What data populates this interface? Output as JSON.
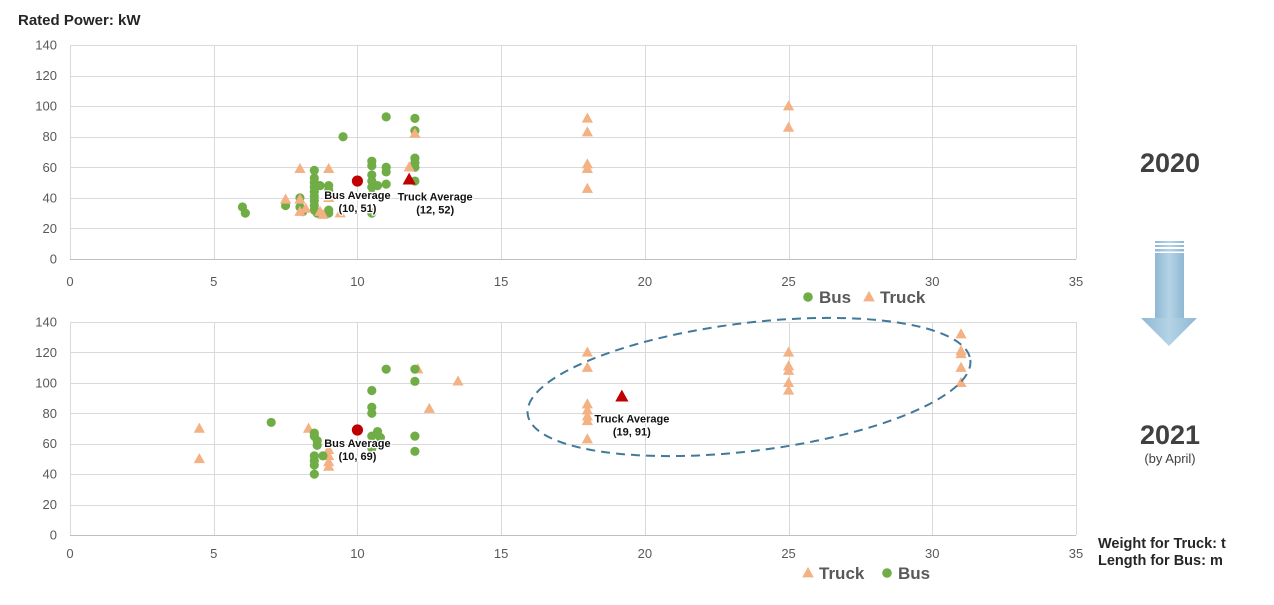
{
  "colors": {
    "bus": "#70ad47",
    "truck": "#f4b183",
    "average": "#c00000",
    "ellipse": "#41799a",
    "arrow": "#a3c7dd"
  },
  "arrow_icon": "down-arrow-icon",
  "chart_data": [
    {
      "type": "scatter",
      "period": "2020",
      "ylabel": "Rated Power: kW",
      "xlabel": [],
      "xlim": [
        0,
        35
      ],
      "ylim": [
        0,
        140
      ],
      "xticks": [
        0,
        5,
        10,
        15,
        20,
        25,
        30,
        35
      ],
      "yticks": [
        0,
        20,
        40,
        60,
        80,
        100,
        120,
        140
      ],
      "grid": true,
      "legend": "bottom",
      "series": [
        {
          "name": "Bus",
          "marker": "circle",
          "color": "#70ad47",
          "points": [
            [
              6.0,
              34
            ],
            [
              6.1,
              30
            ],
            [
              7.5,
              35
            ],
            [
              8.0,
              40
            ],
            [
              8.0,
              34
            ],
            [
              8.1,
              31
            ],
            [
              8.5,
              58
            ],
            [
              8.5,
              53
            ],
            [
              8.5,
              50
            ],
            [
              8.5,
              47
            ],
            [
              8.5,
              44
            ],
            [
              8.5,
              41
            ],
            [
              8.5,
              38
            ],
            [
              8.5,
              35
            ],
            [
              8.5,
              32
            ],
            [
              8.6,
              30
            ],
            [
              8.7,
              48
            ],
            [
              9.0,
              48
            ],
            [
              9.0,
              45
            ],
            [
              9.0,
              32
            ],
            [
              9.0,
              30
            ],
            [
              9.5,
              80
            ],
            [
              10.5,
              64
            ],
            [
              10.5,
              61
            ],
            [
              10.5,
              55
            ],
            [
              10.5,
              51
            ],
            [
              10.5,
              47
            ],
            [
              10.5,
              42
            ],
            [
              10.5,
              30
            ],
            [
              10.7,
              48
            ],
            [
              11.0,
              93
            ],
            [
              11.0,
              60
            ],
            [
              11.0,
              57
            ],
            [
              11.0,
              49
            ],
            [
              12.0,
              92
            ],
            [
              12.0,
              84
            ],
            [
              12.0,
              66
            ],
            [
              12.0,
              63
            ],
            [
              12.0,
              60
            ],
            [
              12.0,
              51
            ]
          ]
        },
        {
          "name": "Truck",
          "marker": "triangle",
          "color": "#f4b183",
          "points": [
            [
              7.5,
              39
            ],
            [
              8.0,
              59
            ],
            [
              8.0,
              39
            ],
            [
              8.0,
              31
            ],
            [
              8.2,
              33
            ],
            [
              8.7,
              31
            ],
            [
              8.8,
              29
            ],
            [
              9.0,
              59
            ],
            [
              9.0,
              40
            ],
            [
              9.4,
              30
            ],
            [
              11.8,
              60
            ],
            [
              12.0,
              82
            ],
            [
              18.0,
              92
            ],
            [
              18.0,
              83
            ],
            [
              18.0,
              62
            ],
            [
              18.0,
              59
            ],
            [
              18.0,
              46
            ],
            [
              25.0,
              100
            ],
            [
              25.0,
              86
            ]
          ]
        }
      ],
      "annotations": [
        {
          "label": "Bus Average",
          "value_label": "(10, 51)",
          "x": 10,
          "y": 51,
          "marker": "circle"
        },
        {
          "label": "Truck Average",
          "value_label": "(12, 52)",
          "x": 11.8,
          "y": 52,
          "marker": "triangle"
        }
      ]
    },
    {
      "type": "scatter",
      "period": "2021",
      "period_note": "(by April)",
      "ylabel": "",
      "xlabel": [
        "Weight for Truck: t",
        "Length for Bus: m"
      ],
      "xlim": [
        0,
        35
      ],
      "ylim": [
        0,
        140
      ],
      "xticks": [
        0,
        5,
        10,
        15,
        20,
        25,
        30,
        35
      ],
      "yticks": [
        0,
        20,
        40,
        60,
        80,
        100,
        120,
        140
      ],
      "grid": true,
      "legend": "bottom",
      "series": [
        {
          "name": "Truck",
          "marker": "triangle",
          "color": "#f4b183",
          "points": [
            [
              4.5,
              70
            ],
            [
              4.5,
              50
            ],
            [
              8.3,
              70
            ],
            [
              9.0,
              56
            ],
            [
              9.0,
              52
            ],
            [
              9.0,
              48
            ],
            [
              9.0,
              45
            ],
            [
              12.1,
              109
            ],
            [
              12.5,
              83
            ],
            [
              13.5,
              101
            ],
            [
              18.0,
              120
            ],
            [
              18.0,
              110
            ],
            [
              18.0,
              86
            ],
            [
              18.0,
              82
            ],
            [
              18.0,
              78
            ],
            [
              18.0,
              75
            ],
            [
              18.0,
              63
            ],
            [
              25.0,
              120
            ],
            [
              25.0,
              111
            ],
            [
              25.0,
              108
            ],
            [
              25.0,
              100
            ],
            [
              25.0,
              95
            ],
            [
              31.0,
              132
            ],
            [
              31.0,
              121
            ],
            [
              31.0,
              119
            ],
            [
              31.0,
              110
            ],
            [
              31.0,
              100
            ]
          ]
        },
        {
          "name": "Bus",
          "marker": "circle",
          "color": "#70ad47",
          "points": [
            [
              7.0,
              74
            ],
            [
              8.5,
              67
            ],
            [
              8.5,
              65
            ],
            [
              8.6,
              62
            ],
            [
              8.6,
              59
            ],
            [
              8.5,
              52
            ],
            [
              8.5,
              49
            ],
            [
              8.5,
              46
            ],
            [
              8.5,
              40
            ],
            [
              8.8,
              52
            ],
            [
              10.5,
              95
            ],
            [
              10.5,
              84
            ],
            [
              10.5,
              80
            ],
            [
              10.5,
              65
            ],
            [
              10.5,
              57
            ],
            [
              10.5,
              52
            ],
            [
              10.7,
              68
            ],
            [
              10.8,
              64
            ],
            [
              11.0,
              109
            ],
            [
              12.0,
              109
            ],
            [
              12.0,
              101
            ],
            [
              12.0,
              65
            ],
            [
              12.0,
              55
            ]
          ]
        }
      ],
      "annotations": [
        {
          "label": "Bus Average",
          "value_label": "(10, 69)",
          "x": 10,
          "y": 69,
          "marker": "circle"
        },
        {
          "label": "Truck Average",
          "value_label": "(19, 91)",
          "x": 19.2,
          "y": 91,
          "marker": "triangle"
        }
      ]
    }
  ]
}
